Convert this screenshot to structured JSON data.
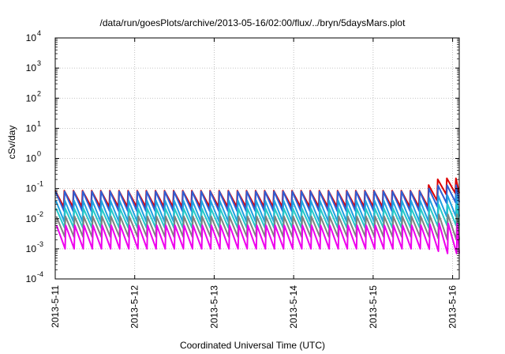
{
  "chart_data": {
    "type": "line",
    "title": "/data/run/goesPlots/archive/2013-05-16/02:00/flux/../bryn/5daysMars.plot",
    "xlabel": "Coordinated Universal Time (UTC)",
    "ylabel": "cSv/day",
    "xlim": [
      "2013-05-11",
      "2013-05-16 02:00"
    ],
    "ylim": [
      0.0001,
      10000
    ],
    "y_scale": "log",
    "grid": true,
    "x_ticks": [
      "2013-5-11",
      "2013-5-12",
      "2013-5-13",
      "2013-5-14",
      "2013-5-15",
      "2013-5-16"
    ],
    "y_ticks": [
      {
        "base": "10",
        "exp": "4"
      },
      {
        "base": "10",
        "exp": "3"
      },
      {
        "base": "10",
        "exp": "2"
      },
      {
        "base": "10",
        "exp": "1"
      },
      {
        "base": "10",
        "exp": "0"
      },
      {
        "base": "10",
        "exp": "-1"
      },
      {
        "base": "10",
        "exp": "-2"
      },
      {
        "base": "10",
        "exp": "-3"
      },
      {
        "base": "10",
        "exp": "-4"
      }
    ],
    "sawtooth_period_hours": 2.75,
    "series": [
      {
        "color": "#dd0000",
        "base_peak": 0.085,
        "base_trough": 0.025,
        "late_peak": 0.22,
        "late_trough": 0.07
      },
      {
        "color": "#2d5fd6",
        "base_peak": 0.08,
        "base_trough": 0.018,
        "late_peak": 0.13,
        "late_trough": 0.035
      },
      {
        "color": "#1ea0e0",
        "base_peak": 0.04,
        "base_trough": 0.008,
        "late_peak": 0.06,
        "late_trough": 0.012
      },
      {
        "color": "#26c9c9",
        "base_peak": 0.022,
        "base_trough": 0.005,
        "late_peak": 0.03,
        "late_trough": 0.006
      },
      {
        "color": "#808080",
        "base_peak": 0.012,
        "base_trough": 0.0025,
        "late_peak": 0.014,
        "late_trough": 0.002
      },
      {
        "color": "#ee00ee",
        "base_peak": 0.006,
        "base_trough": 0.001,
        "late_peak": 0.007,
        "late_trough": 0.0007
      }
    ]
  }
}
